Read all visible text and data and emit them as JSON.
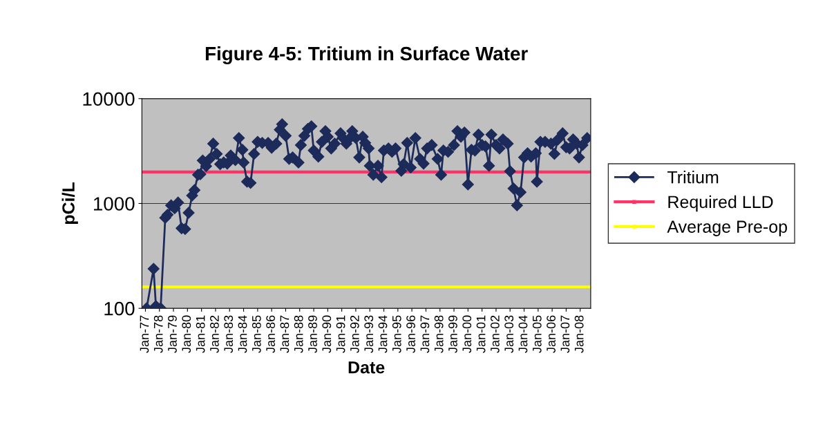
{
  "chart_data": {
    "type": "line",
    "title": "Figure 4-5: Tritium in Surface Water",
    "xlabel": "Date",
    "ylabel": "pCi/L",
    "log": "y",
    "ylim": [
      100,
      10000
    ],
    "yticks": [
      100,
      1000,
      10000
    ],
    "grid": "y",
    "legend": "right",
    "marker": "diamond",
    "line_style": "solid",
    "xlim": [
      "1976-10",
      "2008-10"
    ],
    "xticks": [
      {
        "value": "1977-01",
        "label": "Jan-77"
      },
      {
        "value": "1978-01",
        "label": "Jan-78"
      },
      {
        "value": "1979-01",
        "label": "Jan-79"
      },
      {
        "value": "1980-01",
        "label": "Jan-80"
      },
      {
        "value": "1981-01",
        "label": "Jan-81"
      },
      {
        "value": "1982-01",
        "label": "Jan-82"
      },
      {
        "value": "1983-01",
        "label": "Jan-83"
      },
      {
        "value": "1984-01",
        "label": "Jan-84"
      },
      {
        "value": "1985-01",
        "label": "Jan-85"
      },
      {
        "value": "1986-01",
        "label": "Jan-86"
      },
      {
        "value": "1987-01",
        "label": "Jan-87"
      },
      {
        "value": "1988-01",
        "label": "Jan-88"
      },
      {
        "value": "1989-01",
        "label": "Jan-89"
      },
      {
        "value": "1990-01",
        "label": "Jan-90"
      },
      {
        "value": "1991-01",
        "label": "Jan-91"
      },
      {
        "value": "1992-01",
        "label": "Jan-92"
      },
      {
        "value": "1993-01",
        "label": "Jan-93"
      },
      {
        "value": "1994-01",
        "label": "Jan-94"
      },
      {
        "value": "1995-01",
        "label": "Jan-95"
      },
      {
        "value": "1996-01",
        "label": "Jan-96"
      },
      {
        "value": "1997-01",
        "label": "Jan-97"
      },
      {
        "value": "1998-01",
        "label": "Jan-98"
      },
      {
        "value": "1999-01",
        "label": "Jan-99"
      },
      {
        "value": "2000-01",
        "label": "Jan-00"
      },
      {
        "value": "2001-01",
        "label": "Jan-01"
      },
      {
        "value": "2002-01",
        "label": "Jan-02"
      },
      {
        "value": "2003-01",
        "label": "Jan-03"
      },
      {
        "value": "2004-01",
        "label": "Jan-04"
      },
      {
        "value": "2005-01",
        "label": "Jan-05"
      },
      {
        "value": "2006-01",
        "label": "Jan-06"
      },
      {
        "value": "2007-01",
        "label": "Jan-07"
      },
      {
        "value": "2008-01",
        "label": "Jan-08"
      }
    ],
    "series": [
      {
        "name": "Tritium",
        "color": "#1c2b5a",
        "x": [
          "1977-02",
          "1977-08",
          "1977-10",
          "1978-02",
          "1978-06",
          "1978-08",
          "1978-11",
          "1979-02",
          "1979-05",
          "1979-08",
          "1979-11",
          "1980-02",
          "1980-05",
          "1980-07",
          "1980-10",
          "1980-12",
          "1981-02",
          "1981-05",
          "1981-08",
          "1981-11",
          "1982-02",
          "1982-05",
          "1982-08",
          "1982-11",
          "1983-02",
          "1983-06",
          "1983-09",
          "1983-12",
          "1984-01",
          "1984-04",
          "1984-07",
          "1984-10",
          "1985-01",
          "1985-05",
          "1985-10",
          "1986-01",
          "1986-05",
          "1986-08",
          "1986-10",
          "1987-01",
          "1987-04",
          "1987-07",
          "1987-12",
          "1988-02",
          "1988-05",
          "1988-08",
          "1988-11",
          "1989-01",
          "1989-05",
          "1989-08",
          "1989-11",
          "1990-01",
          "1990-04",
          "1990-07",
          "1990-12",
          "1991-02",
          "1991-05",
          "1991-08",
          "1991-10",
          "1992-01",
          "1992-04",
          "1992-07",
          "1992-09",
          "1992-12",
          "1993-01",
          "1993-04",
          "1993-08",
          "1993-11",
          "1994-01",
          "1994-05",
          "1994-08",
          "1994-11",
          "1995-04",
          "1995-06",
          "1995-09",
          "1995-12",
          "1996-04",
          "1996-08",
          "1996-11",
          "1997-02",
          "1997-06",
          "1997-11",
          "1998-02",
          "1998-04",
          "1998-08",
          "1999-01",
          "1999-04",
          "1999-07",
          "1999-10",
          "2000-01",
          "2000-04",
          "2000-07",
          "2000-10",
          "2001-01",
          "2001-04",
          "2001-07",
          "2001-09",
          "2002-01",
          "2002-04",
          "2002-07",
          "2002-11",
          "2003-01",
          "2003-04",
          "2003-07",
          "2003-10",
          "2004-01",
          "2004-04",
          "2004-07",
          "2004-11",
          "2004-12",
          "2005-03",
          "2005-07",
          "2005-12",
          "2006-03",
          "2006-06",
          "2006-10",
          "2007-01",
          "2007-04",
          "2007-07",
          "2007-10",
          "2007-12",
          "2008-03",
          "2008-07"
        ],
        "values": [
          100,
          238,
          105,
          100,
          730,
          780,
          960,
          900,
          1020,
          580,
          570,
          815,
          1190,
          1340,
          1880,
          1900,
          2570,
          2270,
          2660,
          3720,
          2970,
          2370,
          2460,
          2400,
          2870,
          2590,
          4210,
          3250,
          2460,
          1615,
          1570,
          2970,
          3870,
          3780,
          3780,
          3400,
          3720,
          5050,
          5700,
          4420,
          2660,
          2750,
          2460,
          3610,
          4420,
          5140,
          5450,
          3200,
          2800,
          3870,
          4900,
          4330,
          3350,
          3720,
          4670,
          4210,
          3720,
          4210,
          4900,
          4210,
          2750,
          4330,
          3780,
          3350,
          2290,
          1880,
          2290,
          1780,
          3200,
          3350,
          3110,
          3350,
          2050,
          2370,
          3780,
          2200,
          4210,
          2660,
          2400,
          3350,
          3610,
          2660,
          1880,
          3200,
          3110,
          3610,
          4900,
          4330,
          4750,
          1520,
          3250,
          3200,
          4540,
          3610,
          3500,
          2290,
          4540,
          3610,
          3350,
          4080,
          3720,
          2030,
          1390,
          960,
          1280,
          2750,
          3010,
          2800,
          3010,
          1615,
          3870,
          3870,
          3720,
          2970,
          4080,
          4670,
          3440,
          3350,
          4080,
          3720,
          2750,
          3610,
          4210
        ]
      }
    ],
    "ref_lines": [
      {
        "axis": "y",
        "value": 2000,
        "label": "Required LLD",
        "color": "#ff3366"
      },
      {
        "axis": "y",
        "value": 160,
        "label": "Average Pre-op",
        "color": "#ffff00"
      }
    ]
  }
}
